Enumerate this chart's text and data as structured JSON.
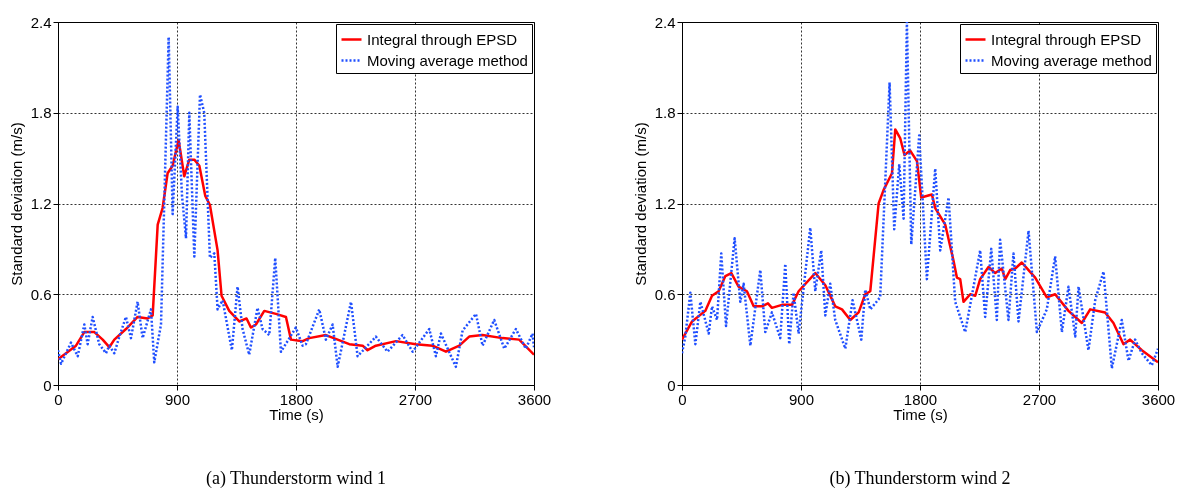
{
  "chart_data": [
    {
      "type": "line",
      "title": "(a) Thunderstorm wind 1",
      "xlabel": "Time (s)",
      "ylabel": "Standard deviation (m/s)",
      "xlim": [
        0,
        3600
      ],
      "ylim": [
        0,
        2.4
      ],
      "xticks": [
        0,
        900,
        1800,
        2700,
        3600
      ],
      "yticks": [
        0,
        0.6,
        1.2,
        1.8,
        2.4
      ],
      "grid": true,
      "legend": "top right",
      "series": [
        {
          "name": "Integral through EPSD",
          "color": "#ff0000",
          "line_style": "solid",
          "x": [
            0,
            136,
            199,
            275,
            338,
            388,
            426,
            514,
            602,
            678,
            716,
            754,
            791,
            829,
            867,
            912,
            955,
            993,
            1031,
            1069,
            1114,
            1149,
            1207,
            1237,
            1295,
            1371,
            1426,
            1459,
            1497,
            1560,
            1648,
            1724,
            1762,
            1850,
            1900,
            2026,
            2115,
            2203,
            2304,
            2341,
            2404,
            2556,
            2707,
            2833,
            2934,
            3035,
            3110,
            3210,
            3362,
            3488,
            3600
          ],
          "values": [
            0.17,
            0.26,
            0.35,
            0.35,
            0.3,
            0.25,
            0.3,
            0.37,
            0.45,
            0.44,
            0.46,
            1.06,
            1.17,
            1.4,
            1.45,
            1.62,
            1.38,
            1.49,
            1.49,
            1.45,
            1.25,
            1.19,
            0.89,
            0.59,
            0.49,
            0.42,
            0.44,
            0.38,
            0.4,
            0.49,
            0.47,
            0.45,
            0.3,
            0.29,
            0.31,
            0.33,
            0.3,
            0.27,
            0.26,
            0.23,
            0.26,
            0.29,
            0.27,
            0.26,
            0.22,
            0.26,
            0.32,
            0.33,
            0.31,
            0.3,
            0.2
          ]
        },
        {
          "name": "Moving average method",
          "color": "#1f4fff",
          "line_style": "dotted",
          "x": [
            0,
            23,
            98,
            149,
            199,
            224,
            262,
            312,
            363,
            388,
            426,
            464,
            514,
            552,
            602,
            640,
            703,
            728,
            779,
            837,
            867,
            905,
            938,
            968,
            993,
            1031,
            1074,
            1106,
            1149,
            1182,
            1207,
            1245,
            1315,
            1358,
            1396,
            1446,
            1509,
            1547,
            1598,
            1643,
            1686,
            1736,
            1799,
            1850,
            1875,
            1976,
            2026,
            2077,
            2115,
            2216,
            2266,
            2341,
            2404,
            2492,
            2606,
            2682,
            2808,
            2858,
            2896,
            3009,
            3060,
            3161,
            3211,
            3299,
            3375,
            3463,
            3538,
            3589,
            3600
          ],
          "values": [
            0.23,
            0.14,
            0.28,
            0.19,
            0.4,
            0.27,
            0.45,
            0.27,
            0.21,
            0.26,
            0.21,
            0.32,
            0.45,
            0.31,
            0.55,
            0.31,
            0.5,
            0.15,
            0.4,
            2.3,
            1.13,
            1.84,
            1.25,
            0.97,
            1.8,
            0.85,
            1.92,
            1.8,
            0.84,
            0.87,
            0.5,
            0.56,
            0.23,
            0.65,
            0.37,
            0.2,
            0.51,
            0.37,
            0.33,
            0.84,
            0.22,
            0.29,
            0.38,
            0.26,
            0.27,
            0.5,
            0.3,
            0.4,
            0.12,
            0.55,
            0.19,
            0.26,
            0.32,
            0.22,
            0.33,
            0.22,
            0.37,
            0.19,
            0.34,
            0.12,
            0.36,
            0.47,
            0.26,
            0.43,
            0.24,
            0.37,
            0.24,
            0.34,
            0.25
          ]
        }
      ]
    },
    {
      "type": "line",
      "title": "(b) Thunderstorm wind 2",
      "xlabel": "Time (s)",
      "ylabel": "Standard deviation (m/s)",
      "xlim": [
        0,
        3600
      ],
      "ylim": [
        0,
        2.4
      ],
      "xticks": [
        0,
        900,
        1800,
        2700,
        3600
      ],
      "yticks": [
        0,
        0.6,
        1.2,
        1.8,
        2.4
      ],
      "grid": true,
      "legend": "top right",
      "series": [
        {
          "name": "Integral through EPSD",
          "color": "#ff0000",
          "line_style": "solid",
          "x": [
            0,
            76,
            176,
            227,
            277,
            328,
            373,
            428,
            491,
            542,
            605,
            650,
            680,
            756,
            832,
            882,
            1008,
            1084,
            1159,
            1210,
            1273,
            1336,
            1386,
            1424,
            1487,
            1525,
            1588,
            1613,
            1651,
            1683,
            1726,
            1777,
            1809,
            1890,
            1915,
            1991,
            2054,
            2079,
            2104,
            2129,
            2180,
            2218,
            2255,
            2318,
            2369,
            2419,
            2445,
            2482,
            2520,
            2570,
            2621,
            2671,
            2759,
            2822,
            2923,
            3024,
            3087,
            3200,
            3263,
            3339,
            3389,
            3478,
            3600
          ],
          "values": [
            0.3,
            0.42,
            0.49,
            0.59,
            0.62,
            0.72,
            0.74,
            0.65,
            0.62,
            0.52,
            0.52,
            0.54,
            0.51,
            0.53,
            0.53,
            0.62,
            0.74,
            0.66,
            0.52,
            0.5,
            0.43,
            0.48,
            0.6,
            0.62,
            1.2,
            1.29,
            1.4,
            1.69,
            1.63,
            1.52,
            1.55,
            1.48,
            1.24,
            1.26,
            1.17,
            1.06,
            0.82,
            0.71,
            0.7,
            0.55,
            0.6,
            0.59,
            0.7,
            0.78,
            0.74,
            0.77,
            0.7,
            0.76,
            0.77,
            0.81,
            0.76,
            0.71,
            0.58,
            0.6,
            0.49,
            0.41,
            0.5,
            0.48,
            0.41,
            0.27,
            0.3,
            0.23,
            0.15
          ]
        },
        {
          "name": "Moving average method",
          "color": "#1f4fff",
          "line_style": "dotted",
          "x": [
            0,
            25,
            63,
            101,
            139,
            202,
            227,
            265,
            297,
            333,
            398,
            441,
            466,
            517,
            592,
            630,
            680,
            743,
            781,
            811,
            844,
            882,
            970,
            1008,
            1053,
            1084,
            1121,
            1159,
            1235,
            1290,
            1356,
            1386,
            1424,
            1499,
            1570,
            1605,
            1643,
            1676,
            1701,
            1734,
            1794,
            1852,
            1915,
            1953,
            2016,
            2066,
            2142,
            2255,
            2293,
            2339,
            2381,
            2406,
            2469,
            2507,
            2545,
            2621,
            2684,
            2759,
            2822,
            2873,
            2923,
            2974,
            2999,
            3074,
            3125,
            3188,
            3251,
            3326,
            3377,
            3427,
            3478,
            3553,
            3600
          ],
          "values": [
            0.21,
            0.32,
            0.61,
            0.27,
            0.55,
            0.34,
            0.52,
            0.43,
            0.87,
            0.39,
            0.97,
            0.55,
            0.67,
            0.26,
            0.76,
            0.35,
            0.48,
            0.31,
            0.8,
            0.27,
            0.61,
            0.34,
            1.04,
            0.62,
            0.89,
            0.46,
            0.67,
            0.43,
            0.24,
            0.56,
            0.3,
            0.63,
            0.5,
            0.58,
            2.0,
            1.03,
            1.46,
            1.1,
            2.4,
            0.93,
            1.65,
            0.7,
            1.43,
            0.89,
            1.24,
            0.55,
            0.35,
            0.89,
            0.45,
            0.9,
            0.43,
            0.96,
            0.43,
            0.87,
            0.42,
            1.02,
            0.35,
            0.5,
            0.85,
            0.35,
            0.65,
            0.32,
            0.65,
            0.23,
            0.56,
            0.75,
            0.11,
            0.43,
            0.16,
            0.3,
            0.21,
            0.13,
            0.24
          ]
        }
      ]
    }
  ]
}
